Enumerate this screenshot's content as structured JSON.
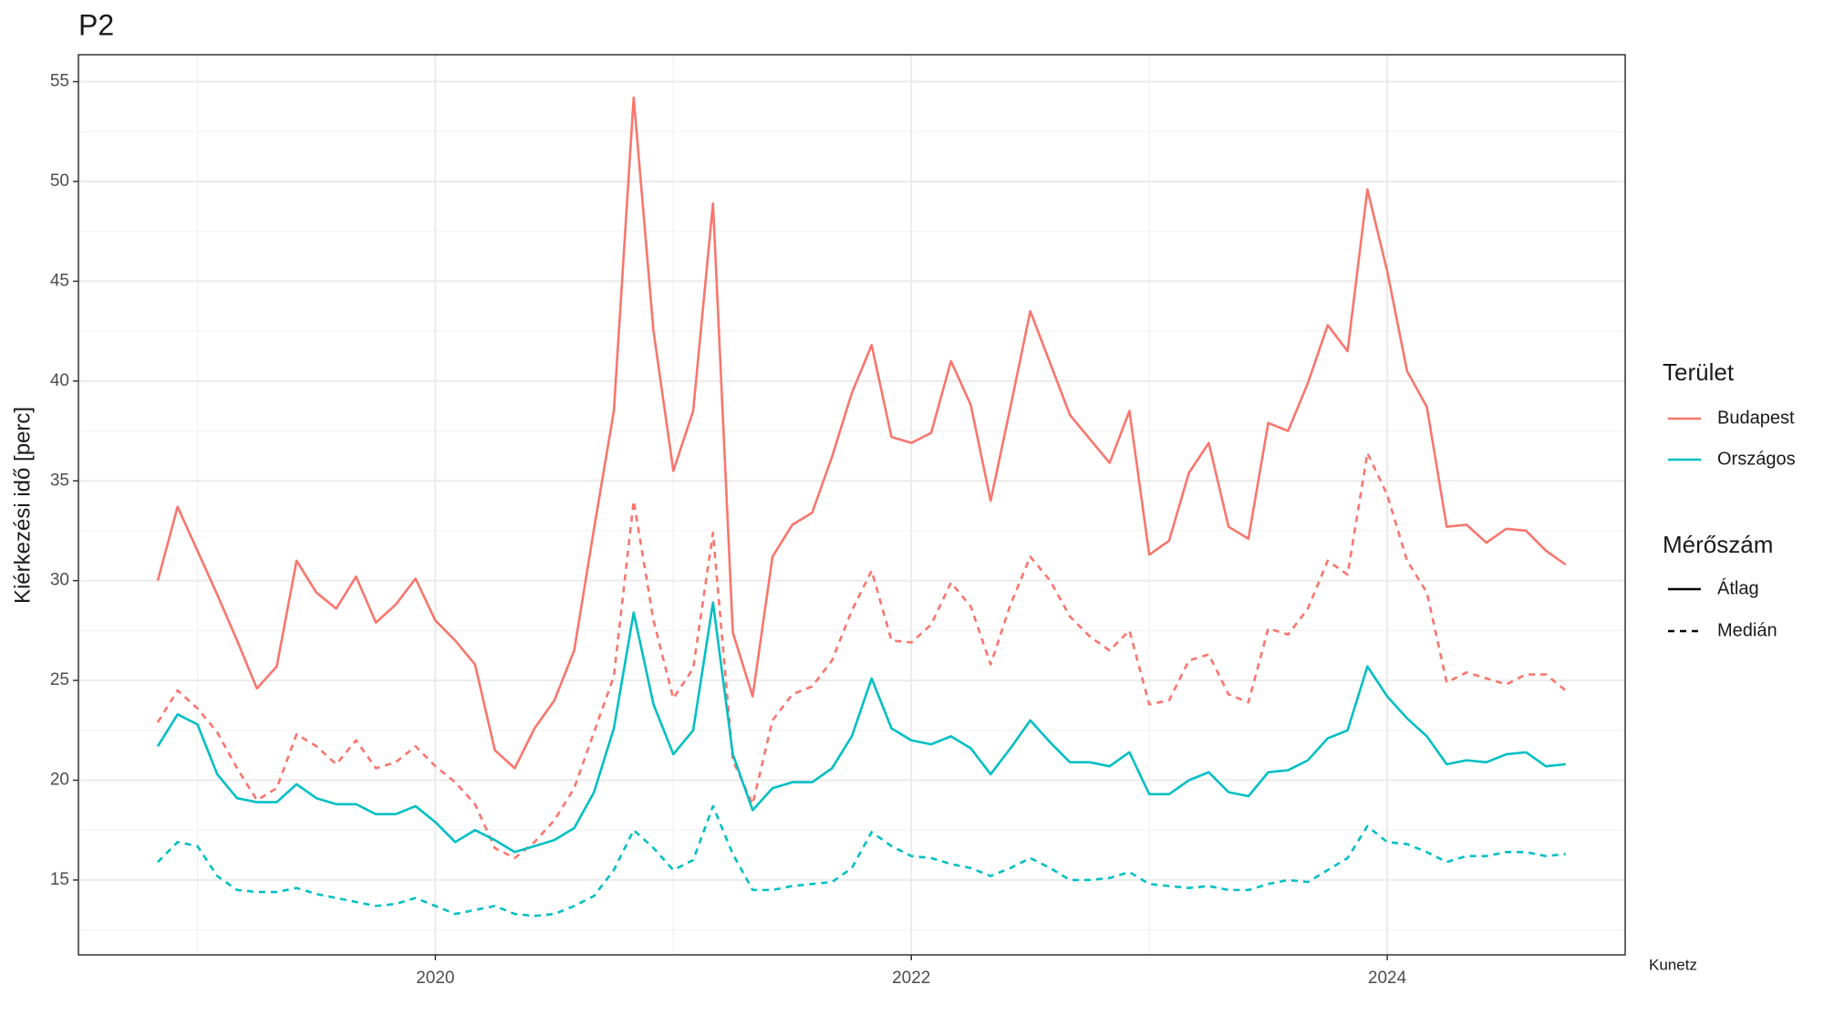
{
  "chart_data": {
    "type": "line",
    "title": "P2",
    "y_label": "Kiérkezési idő [perc]",
    "caption": "Kunetz",
    "color_legend_title": "Terület",
    "linetype_legend_title": "Mérőszám",
    "x": [
      "2018-11",
      "2018-12",
      "2019-01",
      "2019-02",
      "2019-03",
      "2019-04",
      "2019-05",
      "2019-06",
      "2019-07",
      "2019-08",
      "2019-09",
      "2019-10",
      "2019-11",
      "2019-12",
      "2020-01",
      "2020-02",
      "2020-03",
      "2020-04",
      "2020-05",
      "2020-06",
      "2020-07",
      "2020-08",
      "2020-09",
      "2020-10",
      "2020-11",
      "2020-12",
      "2021-01",
      "2021-02",
      "2021-03",
      "2021-04",
      "2021-05",
      "2021-06",
      "2021-07",
      "2021-08",
      "2021-09",
      "2021-10",
      "2021-11",
      "2021-12",
      "2022-01",
      "2022-02",
      "2022-03",
      "2022-04",
      "2022-05",
      "2022-06",
      "2022-07",
      "2022-08",
      "2022-09",
      "2022-10",
      "2022-11",
      "2022-12",
      "2023-01",
      "2023-02",
      "2023-03",
      "2023-04",
      "2023-05",
      "2023-06",
      "2023-07",
      "2023-08",
      "2023-09",
      "2023-10",
      "2023-11",
      "2023-12",
      "2024-01",
      "2024-02",
      "2024-03",
      "2024-04",
      "2024-05",
      "2024-06",
      "2024-07",
      "2024-08",
      "2024-09",
      "2024-10"
    ],
    "series": [
      {
        "area": "Budapest",
        "measure": "Átlag",
        "color": "#F8766D",
        "dash": "solid",
        "values": [
          30.0,
          33.7,
          31.5,
          29.3,
          27.0,
          24.6,
          25.7,
          31.0,
          29.4,
          28.6,
          30.2,
          27.9,
          28.8,
          30.1,
          28.0,
          27.0,
          25.8,
          21.5,
          20.6,
          22.6,
          24.0,
          26.5,
          32.6,
          38.5,
          54.2,
          42.5,
          35.5,
          38.5,
          48.9,
          27.4,
          24.2,
          31.2,
          32.8,
          33.4,
          36.2,
          39.4,
          41.8,
          37.2,
          36.9,
          37.4,
          41.0,
          38.8,
          34.0,
          38.7,
          43.5,
          40.9,
          38.3,
          37.1,
          35.9,
          38.5,
          31.3,
          32.0,
          35.4,
          36.9,
          32.7,
          32.1,
          37.9,
          37.5,
          39.9,
          42.8,
          41.5,
          49.6,
          45.5,
          40.5,
          38.7,
          32.7,
          32.8,
          31.9,
          32.6,
          32.5,
          31.5,
          30.8
        ]
      },
      {
        "area": "Budapest",
        "measure": "Medián",
        "color": "#F8766D",
        "dash": "dashed",
        "values": [
          22.9,
          24.5,
          23.6,
          22.4,
          20.6,
          19.0,
          19.6,
          22.3,
          21.7,
          20.8,
          22.0,
          20.6,
          20.9,
          21.7,
          20.7,
          19.9,
          18.8,
          16.6,
          16.1,
          16.9,
          18.0,
          19.6,
          22.4,
          25.2,
          34.0,
          28.0,
          24.1,
          25.6,
          32.4,
          21.0,
          18.8,
          23.0,
          24.3,
          24.7,
          26.0,
          28.5,
          30.5,
          27.0,
          26.9,
          27.8,
          29.9,
          28.7,
          25.8,
          28.8,
          31.2,
          30.0,
          28.2,
          27.2,
          26.5,
          27.5,
          23.8,
          24.0,
          26.0,
          26.3,
          24.3,
          23.9,
          27.6,
          27.3,
          28.6,
          31.0,
          30.3,
          36.4,
          34.3,
          31.0,
          29.4,
          24.9,
          25.4,
          25.1,
          24.8,
          25.3,
          25.3,
          24.5
        ]
      },
      {
        "area": "Országos",
        "measure": "Átlag",
        "color": "#00BFC4",
        "dash": "solid",
        "values": [
          21.7,
          23.3,
          22.8,
          20.3,
          19.1,
          18.9,
          18.9,
          19.8,
          19.1,
          18.8,
          18.8,
          18.3,
          18.3,
          18.7,
          17.9,
          16.9,
          17.5,
          17.0,
          16.4,
          16.7,
          17.0,
          17.6,
          19.4,
          22.6,
          28.4,
          23.8,
          21.3,
          22.5,
          28.9,
          21.3,
          18.5,
          19.6,
          19.9,
          19.9,
          20.6,
          22.2,
          25.1,
          22.6,
          22.0,
          21.8,
          22.2,
          21.6,
          20.3,
          21.6,
          23.0,
          21.9,
          20.9,
          20.9,
          20.7,
          21.4,
          19.3,
          19.3,
          20.0,
          20.4,
          19.4,
          19.2,
          20.4,
          20.5,
          21.0,
          22.1,
          22.5,
          25.7,
          24.2,
          23.1,
          22.2,
          20.8,
          21.0,
          20.9,
          21.3,
          21.4,
          20.7,
          20.8
        ]
      },
      {
        "area": "Országos",
        "measure": "Medián",
        "color": "#00BFC4",
        "dash": "dashed",
        "values": [
          15.9,
          16.9,
          16.7,
          15.2,
          14.5,
          14.4,
          14.4,
          14.6,
          14.3,
          14.1,
          13.9,
          13.7,
          13.8,
          14.1,
          13.7,
          13.3,
          13.5,
          13.7,
          13.3,
          13.2,
          13.3,
          13.7,
          14.2,
          15.5,
          17.5,
          16.6,
          15.5,
          16.0,
          18.7,
          16.3,
          14.5,
          14.5,
          14.7,
          14.8,
          14.9,
          15.6,
          17.4,
          16.7,
          16.2,
          16.1,
          15.8,
          15.6,
          15.2,
          15.6,
          16.1,
          15.6,
          15.0,
          15.0,
          15.1,
          15.4,
          14.8,
          14.7,
          14.6,
          14.7,
          14.5,
          14.5,
          14.8,
          15.0,
          14.9,
          15.5,
          16.1,
          17.7,
          16.9,
          16.8,
          16.4,
          15.9,
          16.2,
          16.2,
          16.4,
          16.4,
          16.2,
          16.3
        ]
      }
    ],
    "xlim": [
      "2018-07",
      "2025-01"
    ],
    "xticks": [
      "2020",
      "2022",
      "2024"
    ],
    "xminor": [
      "2019",
      "2021",
      "2023",
      "2025"
    ],
    "ylim": [
      11.25,
      56.35
    ],
    "yticks": [
      15,
      20,
      25,
      30,
      35,
      40,
      45,
      50,
      55
    ],
    "yminor": [
      12.5,
      17.5,
      22.5,
      27.5,
      32.5,
      37.5,
      42.5,
      47.5,
      52.5
    ],
    "grid": true
  }
}
